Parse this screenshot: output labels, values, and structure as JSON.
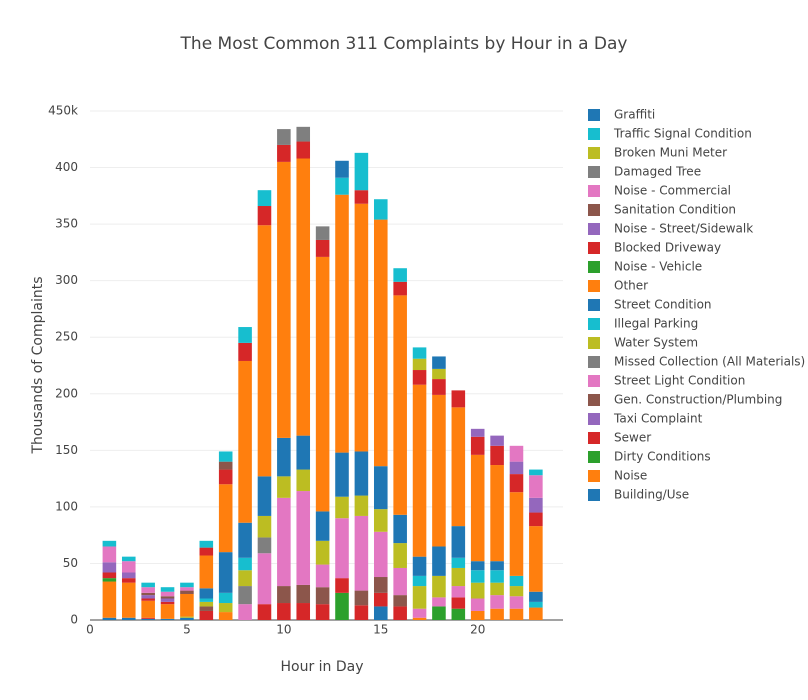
{
  "chart_data": {
    "type": "bar",
    "title": "The Most Common 311 Complaints by Hour in a Day",
    "x_label": "Hour in Day",
    "y_label": "Thousands of Complaints",
    "stacked": true,
    "grid": true,
    "x": [
      1,
      2,
      3,
      4,
      5,
      6,
      7,
      8,
      9,
      10,
      11,
      12,
      13,
      14,
      15,
      16,
      17,
      18,
      19,
      20,
      21,
      22,
      23
    ],
    "xlim": [
      0,
      24.4
    ],
    "xticks": [
      0,
      5,
      10,
      15,
      20
    ],
    "ylim": [
      0,
      450
    ],
    "yticks": [
      0,
      50,
      100,
      150,
      200,
      250,
      300,
      350,
      400,
      {
        "value": 450,
        "label": "450k"
      }
    ],
    "series": [
      {
        "name": "Building/Use",
        "color": "#1f77b4",
        "values": [
          2,
          2,
          1,
          1,
          2,
          0,
          0,
          0,
          0,
          0,
          0,
          0,
          0,
          0,
          12,
          0,
          0,
          0,
          0,
          0,
          0,
          0,
          0
        ]
      },
      {
        "name": "Noise",
        "color": "#ff7f0e",
        "values": [
          0,
          0,
          0,
          0,
          0,
          0,
          7,
          0,
          0,
          0,
          0,
          0,
          0,
          0,
          0,
          0,
          2,
          0,
          0,
          8,
          10,
          10,
          11
        ]
      },
      {
        "name": "Dirty Conditions",
        "color": "#2ca02c",
        "values": [
          0,
          0,
          0,
          0,
          0,
          0,
          0,
          0,
          0,
          0,
          0,
          0,
          24,
          0,
          0,
          0,
          0,
          12,
          10,
          0,
          0,
          0,
          0
        ]
      },
      {
        "name": "Sewer",
        "color": "#d62728",
        "values": [
          0,
          0,
          1,
          0,
          0,
          8,
          0,
          0,
          14,
          15,
          15,
          14,
          13,
          13,
          12,
          12,
          0,
          0,
          10,
          0,
          0,
          0,
          0
        ]
      },
      {
        "name": "Taxi Complaint",
        "color": "#9467bd",
        "values": [
          0,
          0,
          0,
          0,
          0,
          0,
          0,
          0,
          0,
          0,
          0,
          0,
          0,
          0,
          0,
          0,
          0,
          0,
          0,
          0,
          0,
          0,
          0
        ]
      },
      {
        "name": "Gen. Construction/Plumbing",
        "color": "#8c564b",
        "values": [
          0,
          0,
          0,
          0,
          0,
          4,
          0,
          0,
          0,
          15,
          16,
          15,
          0,
          13,
          14,
          10,
          0,
          0,
          0,
          0,
          0,
          0,
          0
        ]
      },
      {
        "name": "Street Light Condition",
        "color": "#e377c2",
        "values": [
          0,
          0,
          0,
          0,
          0,
          0,
          0,
          14,
          45,
          78,
          83,
          20,
          53,
          66,
          40,
          24,
          8,
          8,
          10,
          11,
          12,
          11,
          0
        ]
      },
      {
        "name": "Missed Collection (All Materials)",
        "color": "#7f7f7f",
        "values": [
          0,
          0,
          0,
          0,
          0,
          0,
          0,
          16,
          14,
          0,
          0,
          0,
          0,
          0,
          0,
          0,
          0,
          0,
          0,
          0,
          0,
          0,
          0
        ]
      },
      {
        "name": "Water System",
        "color": "#bcbd22",
        "values": [
          0,
          0,
          0,
          0,
          1,
          4,
          8,
          14,
          19,
          19,
          19,
          21,
          19,
          18,
          20,
          22,
          20,
          19,
          16,
          14,
          11,
          9,
          0
        ]
      },
      {
        "name": "Illegal Parking",
        "color": "#17becf",
        "values": [
          0,
          0,
          0,
          0,
          0,
          3,
          9,
          11,
          0,
          0,
          0,
          0,
          0,
          0,
          0,
          0,
          9,
          0,
          9,
          11,
          11,
          9,
          5
        ]
      },
      {
        "name": "Street Condition",
        "color": "#1f77b4",
        "values": [
          0,
          0,
          0,
          0,
          0,
          9,
          36,
          31,
          35,
          34,
          30,
          26,
          39,
          39,
          38,
          25,
          17,
          26,
          28,
          8,
          8,
          0,
          9
        ]
      },
      {
        "name": "Other",
        "color": "#ff7f0e",
        "values": [
          32,
          31,
          15,
          13,
          20,
          29,
          60,
          143,
          222,
          244,
          245,
          225,
          228,
          219,
          218,
          194,
          152,
          134,
          105,
          94,
          85,
          74,
          58
        ]
      },
      {
        "name": "Noise - Vehicle",
        "color": "#2ca02c",
        "values": [
          3,
          0,
          0,
          0,
          0,
          0,
          0,
          0,
          0,
          0,
          0,
          0,
          0,
          0,
          0,
          0,
          0,
          0,
          0,
          0,
          0,
          0,
          0
        ]
      },
      {
        "name": "Blocked Driveway",
        "color": "#d62728",
        "values": [
          5,
          4,
          2,
          2,
          0,
          7,
          13,
          16,
          17,
          15,
          15,
          15,
          0,
          12,
          0,
          12,
          13,
          14,
          15,
          16,
          17,
          16,
          12
        ]
      },
      {
        "name": "Noise - Street/Sidewalk",
        "color": "#9467bd",
        "values": [
          9,
          5,
          3,
          3,
          0,
          0,
          0,
          0,
          0,
          0,
          0,
          0,
          0,
          0,
          0,
          0,
          0,
          0,
          0,
          7,
          9,
          11,
          13
        ]
      },
      {
        "name": "Sanitation Condition",
        "color": "#8c564b",
        "values": [
          0,
          0,
          2,
          2,
          3,
          0,
          7,
          0,
          0,
          0,
          0,
          0,
          0,
          0,
          0,
          0,
          0,
          0,
          0,
          0,
          0,
          0,
          0
        ]
      },
      {
        "name": "Noise - Commercial",
        "color": "#e377c2",
        "values": [
          14,
          10,
          5,
          4,
          3,
          0,
          0,
          0,
          0,
          0,
          0,
          0,
          0,
          0,
          0,
          0,
          0,
          0,
          0,
          0,
          0,
          14,
          20
        ]
      },
      {
        "name": "Damaged Tree",
        "color": "#7f7f7f",
        "values": [
          0,
          0,
          0,
          0,
          0,
          0,
          0,
          0,
          0,
          14,
          13,
          12,
          0,
          0,
          0,
          0,
          0,
          0,
          0,
          0,
          0,
          0,
          0
        ]
      },
      {
        "name": "Broken Muni Meter",
        "color": "#bcbd22",
        "values": [
          0,
          0,
          0,
          0,
          0,
          0,
          0,
          0,
          0,
          0,
          0,
          0,
          0,
          0,
          0,
          0,
          10,
          9,
          0,
          0,
          0,
          0,
          0
        ]
      },
      {
        "name": "Traffic Signal Condition",
        "color": "#17becf",
        "values": [
          5,
          4,
          4,
          4,
          4,
          6,
          9,
          14,
          14,
          0,
          0,
          0,
          15,
          33,
          18,
          12,
          10,
          0,
          0,
          0,
          0,
          0,
          5
        ]
      },
      {
        "name": "Graffiti",
        "color": "#1f77b4",
        "values": [
          0,
          0,
          0,
          0,
          0,
          0,
          0,
          0,
          0,
          0,
          0,
          0,
          15,
          0,
          0,
          0,
          0,
          11,
          0,
          0,
          0,
          0,
          0
        ]
      }
    ]
  }
}
